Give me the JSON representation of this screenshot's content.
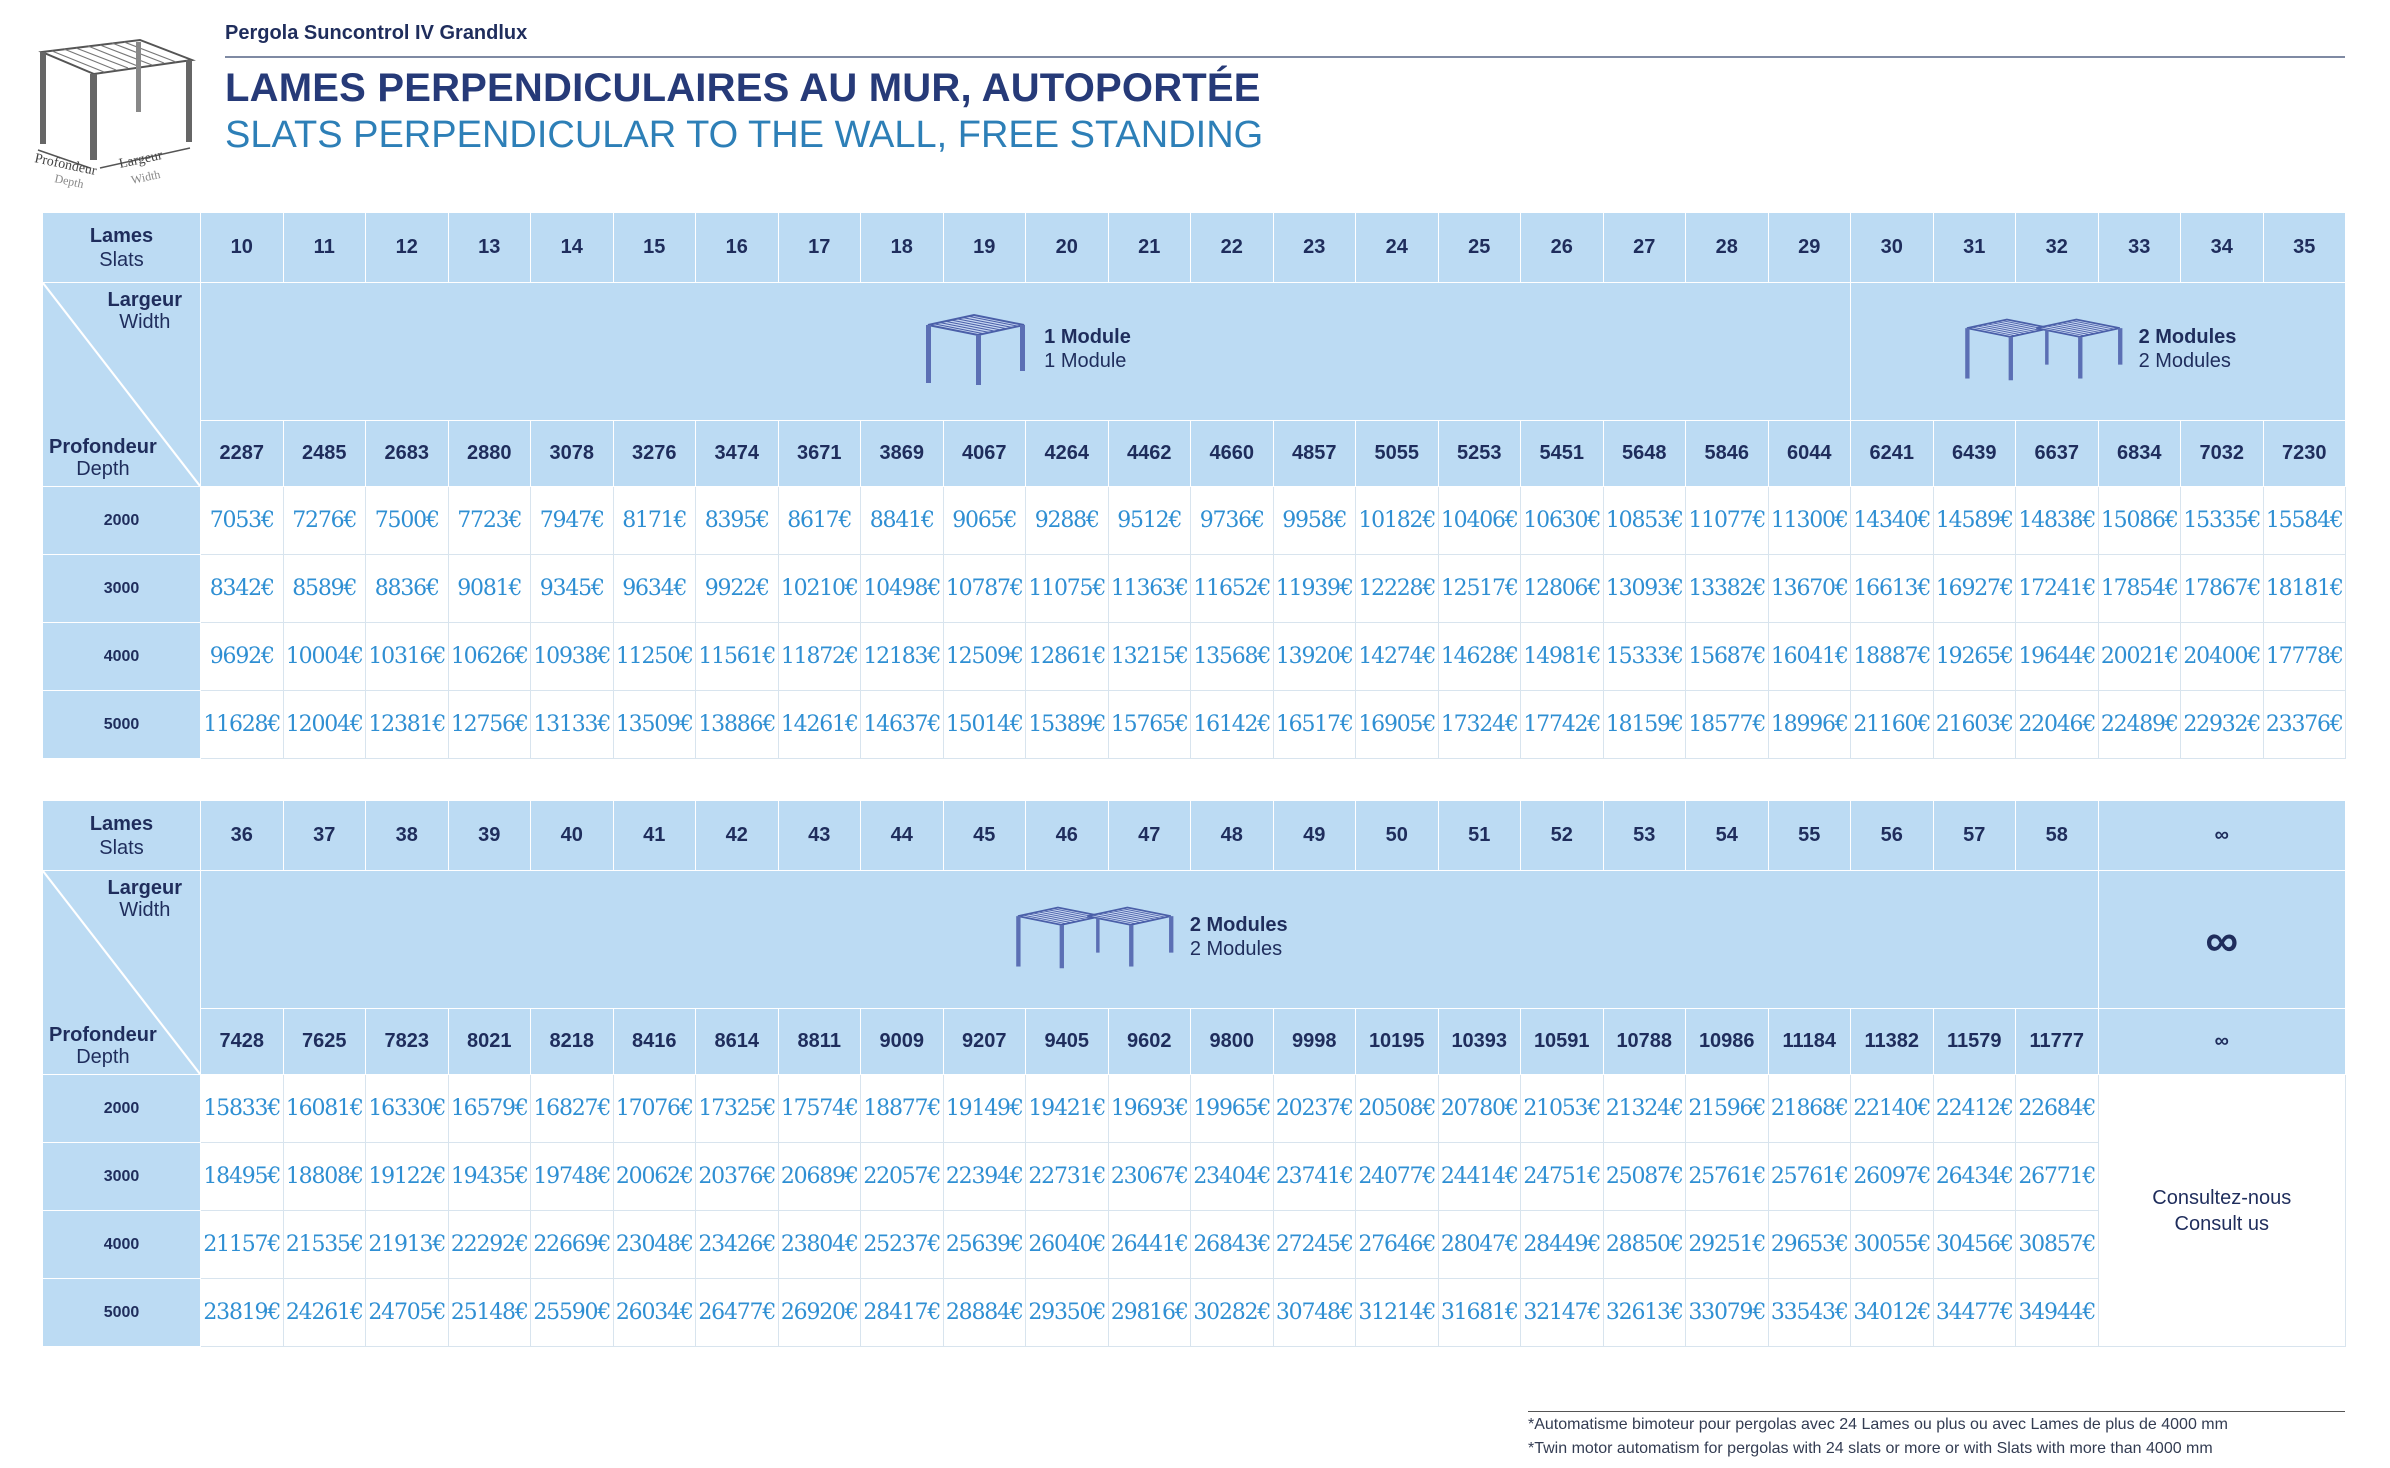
{
  "header": {
    "brand": "Pergola Suncontrol IV Grandlux",
    "title_fr": "LAMES PERPENDICULAIRES AU MUR, AUTOPORTÉE",
    "title_en": "SLATS PERPENDICULAR TO THE WALL, FREE STANDING",
    "logo_depth_fr": "Profondeur",
    "logo_depth_en": "Depth",
    "logo_width_fr": "Largeur",
    "logo_width_en": "Width"
  },
  "labels": {
    "slats_fr": "Lames",
    "slats_en": "Slats",
    "width_fr": "Largeur",
    "width_en": "Width",
    "depth_fr": "Profondeur",
    "depth_en": "Depth",
    "depths": [
      "2000",
      "3000",
      "4000",
      "5000"
    ]
  },
  "table1": {
    "slats": [
      "10",
      "11",
      "12",
      "13",
      "14",
      "15",
      "16",
      "17",
      "18",
      "19",
      "20",
      "21",
      "22",
      "23",
      "24",
      "25",
      "26",
      "27",
      "28",
      "29",
      "30",
      "31",
      "32",
      "33",
      "34",
      "35"
    ],
    "widths": [
      "2287",
      "2485",
      "2683",
      "2880",
      "3078",
      "3276",
      "3474",
      "3671",
      "3869",
      "4067",
      "4264",
      "4462",
      "4660",
      "4857",
      "5055",
      "5253",
      "5451",
      "5648",
      "5846",
      "6044",
      "6241",
      "6439",
      "6637",
      "6834",
      "7032",
      "7230"
    ],
    "module1_fr": "1 Module",
    "module1_en": "1 Module",
    "module2_fr": "2 Modules",
    "module2_en": "2 Modules",
    "prices": [
      [
        "7053€",
        "7276€",
        "7500€",
        "7723€",
        "7947€",
        "8171€",
        "8395€",
        "8617€",
        "8841€",
        "9065€",
        "9288€",
        "9512€",
        "9736€",
        "9958€",
        "10182€",
        "10406€",
        "10630€",
        "10853€",
        "11077€",
        "11300€",
        "14340€",
        "14589€",
        "14838€",
        "15086€",
        "15335€",
        "15584€"
      ],
      [
        "8342€",
        "8589€",
        "8836€",
        "9081€",
        "9345€",
        "9634€",
        "9922€",
        "10210€",
        "10498€",
        "10787€",
        "11075€",
        "11363€",
        "11652€",
        "11939€",
        "12228€",
        "12517€",
        "12806€",
        "13093€",
        "13382€",
        "13670€",
        "16613€",
        "16927€",
        "17241€",
        "17854€",
        "17867€",
        "18181€"
      ],
      [
        "9692€",
        "10004€",
        "10316€",
        "10626€",
        "10938€",
        "11250€",
        "11561€",
        "11872€",
        "12183€",
        "12509€",
        "12861€",
        "13215€",
        "13568€",
        "13920€",
        "14274€",
        "14628€",
        "14981€",
        "15333€",
        "15687€",
        "16041€",
        "18887€",
        "19265€",
        "19644€",
        "20021€",
        "20400€",
        "17778€"
      ],
      [
        "11628€",
        "12004€",
        "12381€",
        "12756€",
        "13133€",
        "13509€",
        "13886€",
        "14261€",
        "14637€",
        "15014€",
        "15389€",
        "15765€",
        "16142€",
        "16517€",
        "16905€",
        "17324€",
        "17742€",
        "18159€",
        "18577€",
        "18996€",
        "21160€",
        "21603€",
        "22046€",
        "22489€",
        "22932€",
        "23376€"
      ]
    ]
  },
  "table2": {
    "slats": [
      "36",
      "37",
      "38",
      "39",
      "40",
      "41",
      "42",
      "43",
      "44",
      "45",
      "46",
      "47",
      "48",
      "49",
      "50",
      "51",
      "52",
      "53",
      "54",
      "55",
      "56",
      "57",
      "58"
    ],
    "widths": [
      "7428",
      "7625",
      "7823",
      "8021",
      "8218",
      "8416",
      "8614",
      "8811",
      "9009",
      "9207",
      "9405",
      "9602",
      "9800",
      "9998",
      "10195",
      "10393",
      "10591",
      "10788",
      "10986",
      "11184",
      "11382",
      "11579",
      "11777"
    ],
    "module2_fr": "2 Modules",
    "module2_en": "2 Modules",
    "infinity": "∞",
    "infinity_big": "∞",
    "infinity_width": "∞",
    "consult_fr": "Consultez-nous",
    "consult_en": "Consult us",
    "prices": [
      [
        "15833€",
        "16081€",
        "16330€",
        "16579€",
        "16827€",
        "17076€",
        "17325€",
        "17574€",
        "18877€",
        "19149€",
        "19421€",
        "19693€",
        "19965€",
        "20237€",
        "20508€",
        "20780€",
        "21053€",
        "21324€",
        "21596€",
        "21868€",
        "22140€",
        "22412€",
        "22684€"
      ],
      [
        "18495€",
        "18808€",
        "19122€",
        "19435€",
        "19748€",
        "20062€",
        "20376€",
        "20689€",
        "22057€",
        "22394€",
        "22731€",
        "23067€",
        "23404€",
        "23741€",
        "24077€",
        "24414€",
        "24751€",
        "25087€",
        "25761€",
        "25761€",
        "26097€",
        "26434€",
        "26771€"
      ],
      [
        "21157€",
        "21535€",
        "21913€",
        "22292€",
        "22669€",
        "23048€",
        "23426€",
        "23804€",
        "25237€",
        "25639€",
        "26040€",
        "26441€",
        "26843€",
        "27245€",
        "27646€",
        "28047€",
        "28449€",
        "28850€",
        "29251€",
        "29653€",
        "30055€",
        "30456€",
        "30857€"
      ],
      [
        "23819€",
        "24261€",
        "24705€",
        "25148€",
        "25590€",
        "26034€",
        "26477€",
        "26920€",
        "28417€",
        "28884€",
        "29350€",
        "29816€",
        "30282€",
        "30748€",
        "31214€",
        "31681€",
        "32147€",
        "32613€",
        "33079€",
        "33543€",
        "34012€",
        "34477€",
        "34944€"
      ]
    ]
  },
  "footnote": {
    "fr": "*Automatisme bimoteur pour pergolas avec 24 Lames ou plus ou avec Lames de plus de 4000 mm",
    "en": "*Twin motor automatism for pergolas with 24 slats or more or with Slats with more than 4000 mm"
  }
}
